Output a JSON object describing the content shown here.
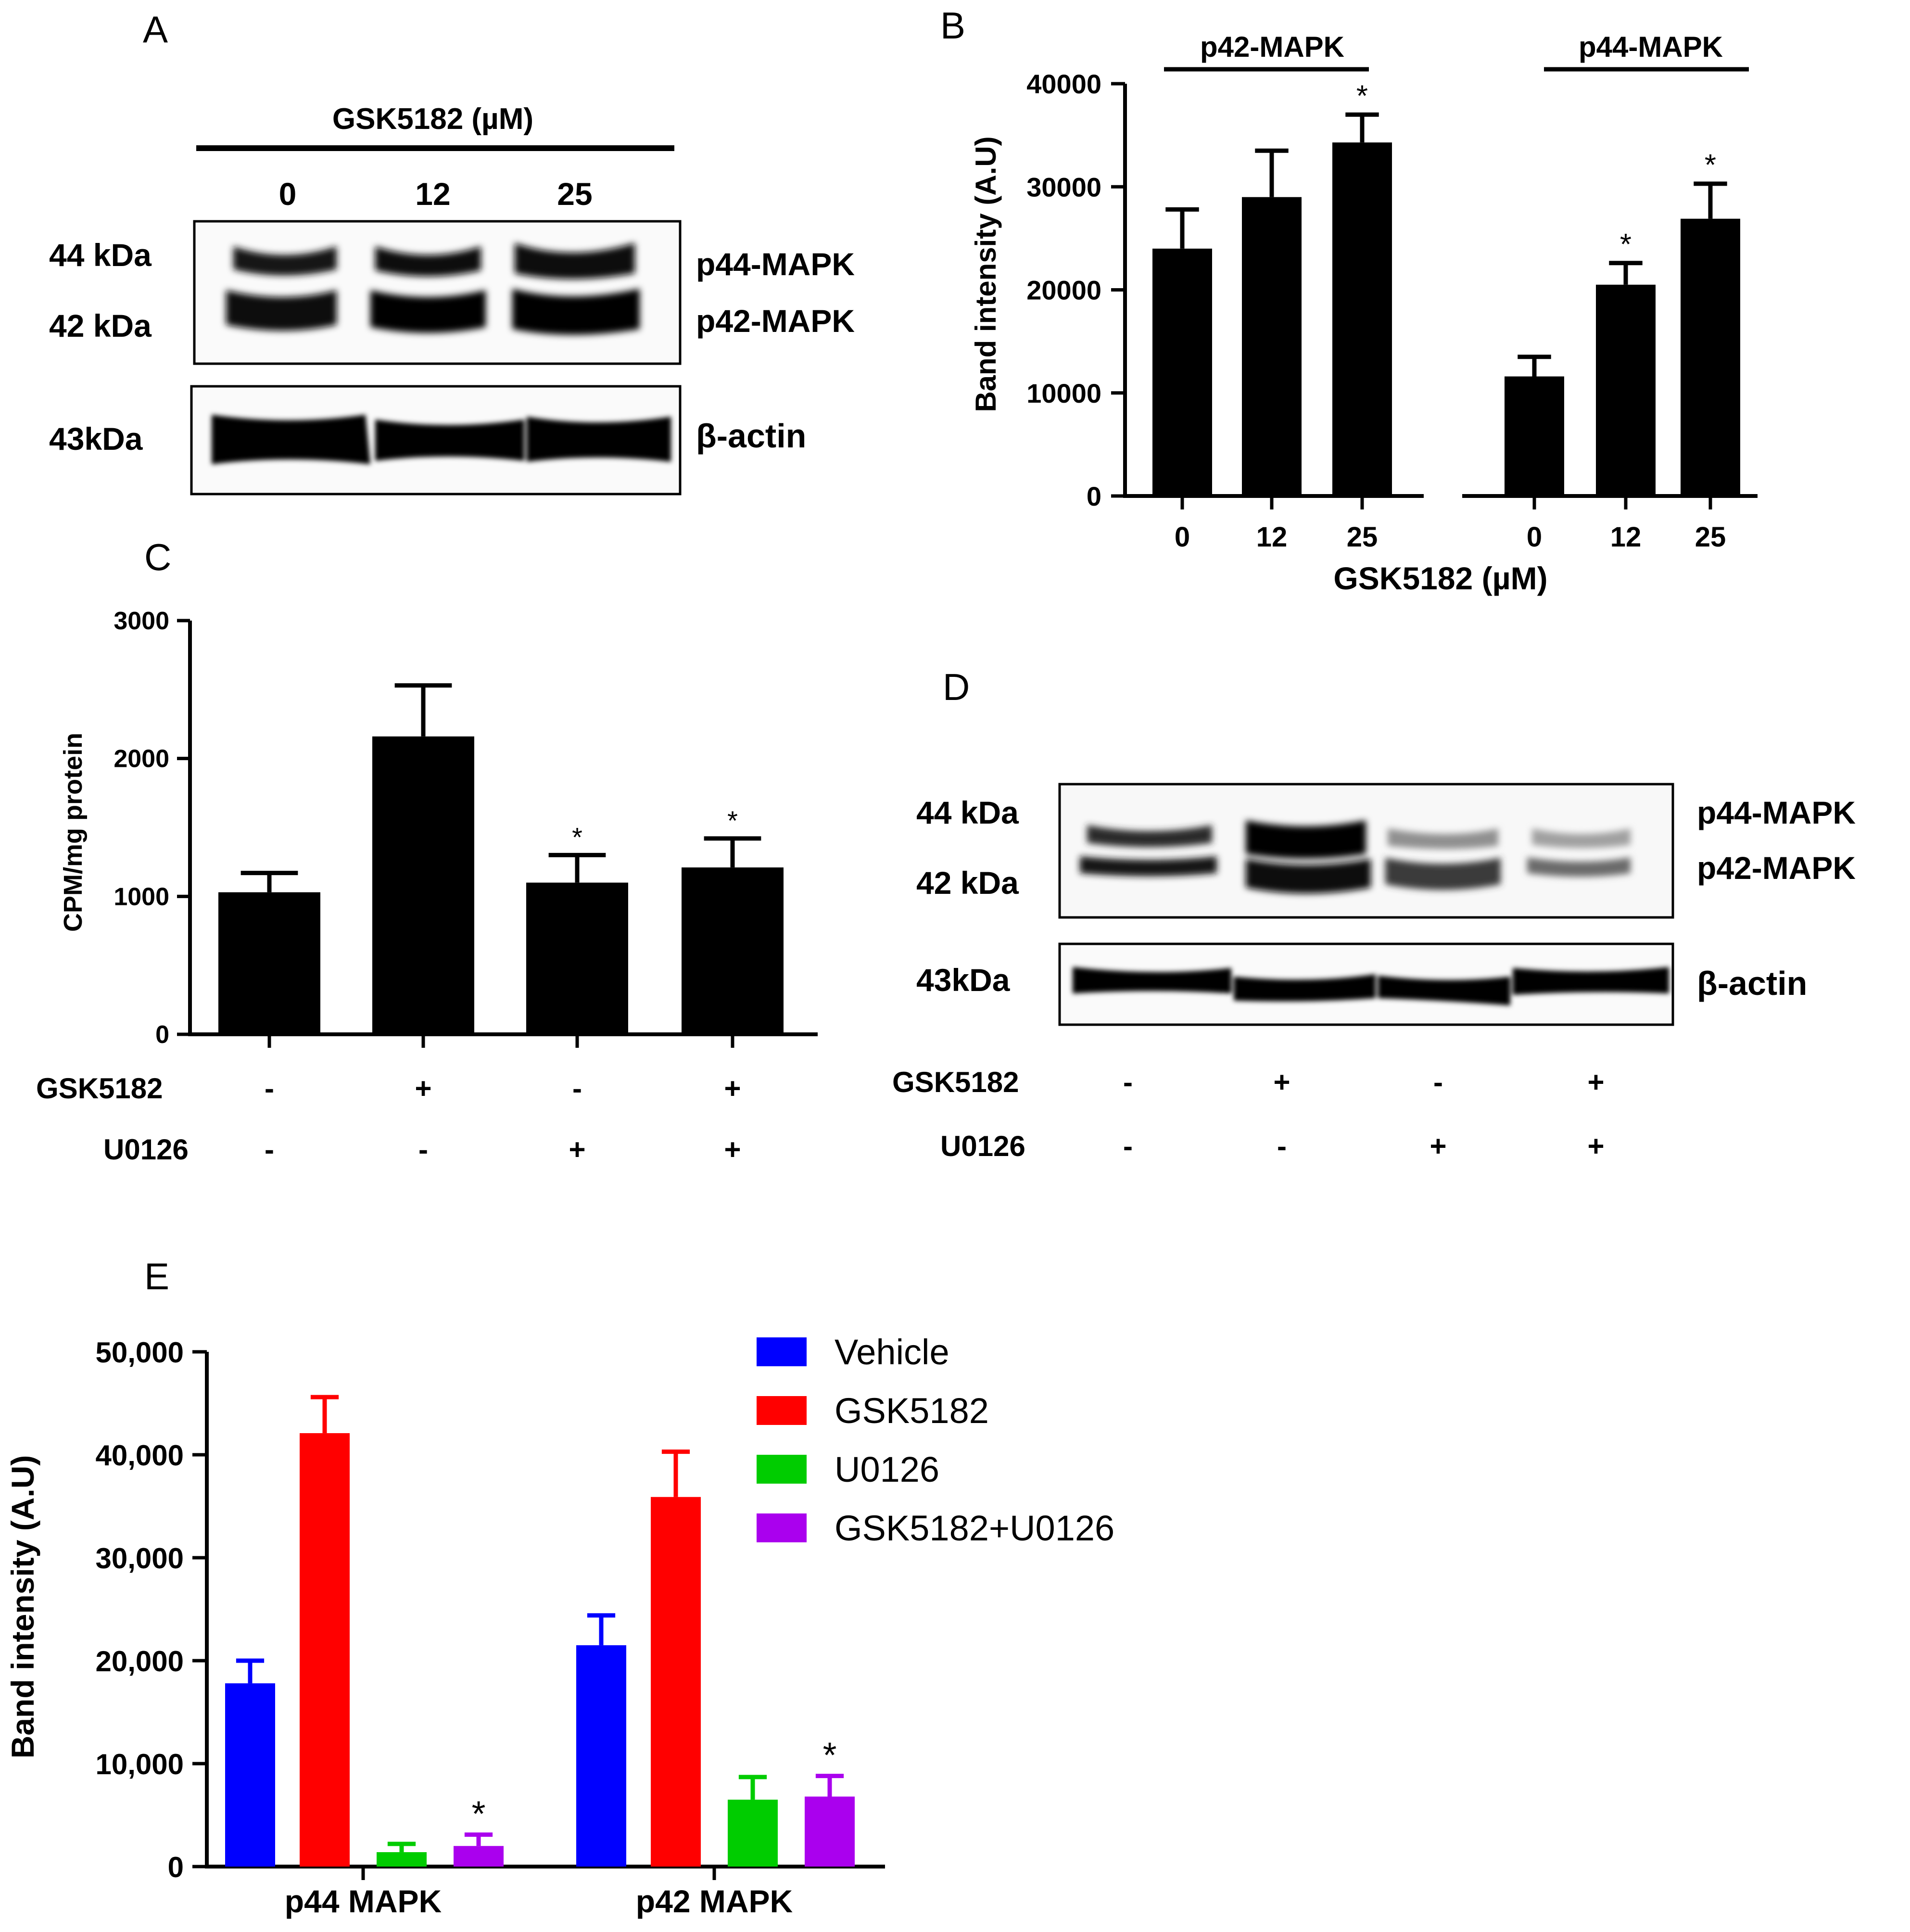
{
  "panels": {
    "a": {
      "letter": "A",
      "treatment_label": "GSK5182 (µM)",
      "lanes": [
        "0",
        "12",
        "25"
      ],
      "mw_top": [
        "44 kDa",
        "42 kDa"
      ],
      "mw_actin": "43kDa",
      "bands_top": [
        "p44-MAPK",
        "p42-MAPK"
      ],
      "band_actin": "β-actin"
    },
    "b": {
      "letter": "B"
    },
    "c": {
      "letter": "C"
    },
    "d": {
      "letter": "D",
      "mw_top": [
        "44 kDa",
        "42 kDa"
      ],
      "mw_actin": "43kDa",
      "bands_top": [
        "p44-MAPK",
        "p42-MAPK"
      ],
      "band_actin": "β-actin",
      "row_labels": [
        "GSK5182",
        "U0126"
      ],
      "row_gsk": [
        "-",
        "+",
        "-",
        "+"
      ],
      "row_u0126": [
        "-",
        "-",
        "+",
        "+"
      ]
    },
    "e": {
      "letter": "E"
    }
  },
  "chart_data": [
    {
      "id": "B",
      "type": "bar",
      "ylabel": "Band intensity (A.U)",
      "xlabel": "GSK5182 (µM)",
      "ylim": [
        0,
        40000
      ],
      "yticks": [
        0,
        10000,
        20000,
        30000,
        40000
      ],
      "ytick_labels": [
        "0",
        "10000",
        "20000",
        "30000",
        "40000"
      ],
      "groups": [
        {
          "name": "p42-MAPK",
          "categories": [
            "0",
            "12",
            "25"
          ],
          "values": [
            24000,
            29000,
            34300
          ],
          "errors": [
            3800,
            4500,
            2700
          ],
          "significance": [
            "",
            "",
            "*"
          ]
        },
        {
          "name": "p44-MAPK",
          "categories": [
            "0",
            "12",
            "25"
          ],
          "values": [
            11600,
            20500,
            26900
          ],
          "errors": [
            1900,
            2100,
            3400
          ],
          "significance": [
            "",
            "*",
            "*"
          ]
        }
      ]
    },
    {
      "id": "C",
      "type": "bar",
      "ylabel": "CPM/mg protein",
      "ylim": [
        0,
        3000
      ],
      "yticks": [
        0,
        1000,
        2000,
        3000
      ],
      "ytick_labels": [
        "0",
        "1000",
        "2000",
        "3000"
      ],
      "values": [
        1030,
        2160,
        1100,
        1210
      ],
      "errors": [
        140,
        370,
        200,
        210
      ],
      "significance": [
        "",
        "",
        "*",
        "*"
      ],
      "row_labels": [
        "GSK5182",
        "U0126"
      ],
      "row_gsk": [
        "-",
        "+",
        "-",
        "+"
      ],
      "row_u0126": [
        "-",
        "-",
        "+",
        "+"
      ]
    },
    {
      "id": "E",
      "type": "bar",
      "ylabel": "Band intensity (A.U)",
      "ylim": [
        0,
        50000
      ],
      "yticks": [
        0,
        10000,
        20000,
        30000,
        40000,
        50000
      ],
      "ytick_labels": [
        "0",
        "10,000",
        "20,000",
        "30,000",
        "40,000",
        "50,000"
      ],
      "categories": [
        "p44 MAPK",
        "p42 MAPK"
      ],
      "legend_position": "top-right",
      "series": [
        {
          "name": "Vehicle",
          "color": "#0000ff",
          "values": [
            17800,
            21500
          ],
          "errors": [
            2200,
            2900
          ],
          "significance": [
            "",
            ""
          ]
        },
        {
          "name": "GSK5182",
          "color": "#ff0000",
          "values": [
            42100,
            35900
          ],
          "errors": [
            3500,
            4400
          ],
          "significance": [
            "",
            ""
          ]
        },
        {
          "name": "U0126",
          "color": "#00cc00",
          "values": [
            1400,
            6500
          ],
          "errors": [
            800,
            2200
          ],
          "significance": [
            "",
            ""
          ]
        },
        {
          "name": "GSK5182+U0126",
          "color": "#aa00ee",
          "values": [
            2000,
            6800
          ],
          "errors": [
            1100,
            2000
          ],
          "significance": [
            "*",
            "*"
          ]
        }
      ]
    }
  ]
}
